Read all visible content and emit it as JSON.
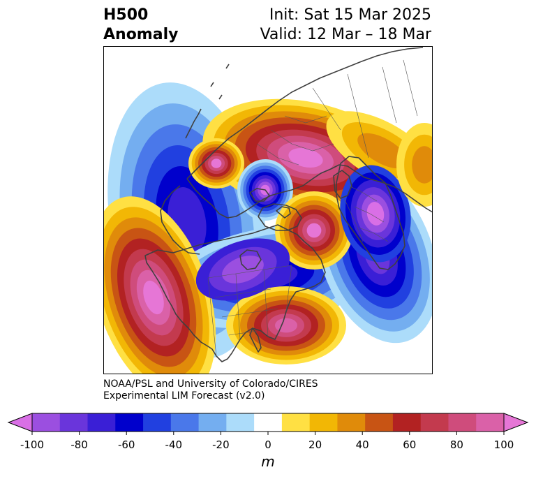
{
  "header": {
    "title_line1": "H500",
    "title_line2": "Anomaly",
    "init": "Init: Sat 15 Mar 2025",
    "valid": "Valid: 12 Mar – 18 Mar"
  },
  "credit": {
    "line1": "NOAA/PSL and University of Colorado/CIRES",
    "line2": "Experimental LIM Forecast (v2.0)"
  },
  "colorbar": {
    "unit": "m",
    "ticks": [
      "-100",
      "-80",
      "-60",
      "-40",
      "-20",
      "0",
      "20",
      "40",
      "60",
      "80",
      "100"
    ],
    "colors": [
      "#d96fe6",
      "#9b4fe0",
      "#6a35db",
      "#3a1fd6",
      "#0000cc",
      "#2140e0",
      "#4a78ea",
      "#74aef0",
      "#acdcfa",
      "#ffffff",
      "#ffe043",
      "#f2b705",
      "#e08b0a",
      "#c85414",
      "#b22222",
      "#c33a4e",
      "#cf4c7c",
      "#da61a8",
      "#e676d6"
    ]
  },
  "colors": {
    "coast": "#404040",
    "frame": "#000000"
  }
}
